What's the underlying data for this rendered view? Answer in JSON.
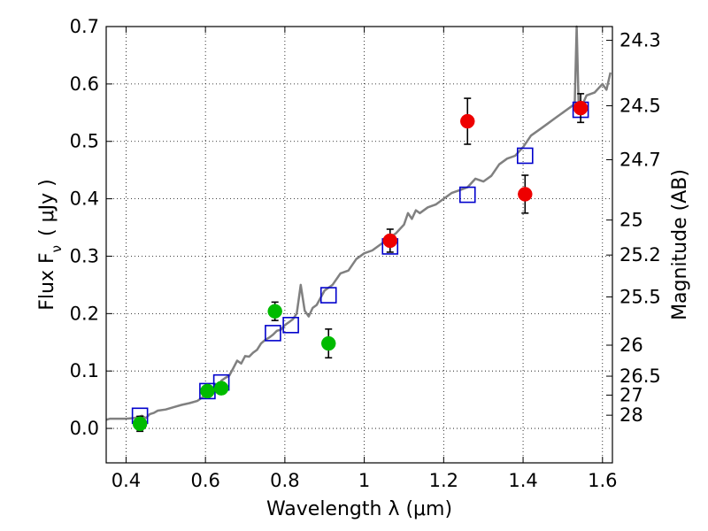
{
  "chart_data": {
    "type": "scatter",
    "xlabel": "Wavelength  λ (μm)",
    "ylabel": "Flux  F",
    "ylabel_sub": "ν",
    "ylabel_unit": "( μJy )",
    "y2label": "Magnitude (AB)",
    "xlim": [
      0.35,
      1.625
    ],
    "ylim": [
      -0.06,
      0.7
    ],
    "grid": true,
    "x_ticks": [
      {
        "value": 0.4,
        "label": "0.4"
      },
      {
        "value": 0.6,
        "label": "0.6"
      },
      {
        "value": 0.8,
        "label": "0.8"
      },
      {
        "value": 1.0,
        "label": "1"
      },
      {
        "value": 1.2,
        "label": "1.2"
      },
      {
        "value": 1.4,
        "label": "1.4"
      },
      {
        "value": 1.6,
        "label": "1.6"
      }
    ],
    "y_ticks": [
      {
        "value": 0.0,
        "label": "0.0"
      },
      {
        "value": 0.1,
        "label": "0.1"
      },
      {
        "value": 0.2,
        "label": "0.2"
      },
      {
        "value": 0.3,
        "label": "0.3"
      },
      {
        "value": 0.4,
        "label": "0.4"
      },
      {
        "value": 0.5,
        "label": "0.5"
      },
      {
        "value": 0.6,
        "label": "0.6"
      },
      {
        "value": 0.7,
        "label": "0.7"
      }
    ],
    "mag_ticks": [
      {
        "value": 0.676,
        "label": "24.3"
      },
      {
        "value": 0.562,
        "label": "24.5"
      },
      {
        "value": 0.468,
        "label": "24.7"
      },
      {
        "value": 0.363,
        "label": "25"
      },
      {
        "value": 0.302,
        "label": "25.2"
      },
      {
        "value": 0.229,
        "label": "25.5"
      },
      {
        "value": 0.145,
        "label": "26"
      },
      {
        "value": 0.091,
        "label": "26.5"
      },
      {
        "value": 0.058,
        "label": "27"
      },
      {
        "value": 0.023,
        "label": "28"
      }
    ],
    "model_spectrum": {
      "color": "#808080",
      "x": [
        0.35,
        0.36,
        0.38,
        0.4,
        0.42,
        0.44,
        0.45,
        0.46,
        0.47,
        0.48,
        0.5,
        0.52,
        0.54,
        0.56,
        0.58,
        0.6,
        0.61,
        0.62,
        0.63,
        0.64,
        0.65,
        0.66,
        0.67,
        0.68,
        0.69,
        0.7,
        0.71,
        0.72,
        0.73,
        0.74,
        0.75,
        0.76,
        0.77,
        0.78,
        0.79,
        0.8,
        0.81,
        0.82,
        0.83,
        0.84,
        0.85,
        0.86,
        0.87,
        0.88,
        0.9,
        0.92,
        0.94,
        0.96,
        0.98,
        1.0,
        1.02,
        1.04,
        1.06,
        1.08,
        1.1,
        1.11,
        1.12,
        1.13,
        1.14,
        1.16,
        1.18,
        1.2,
        1.22,
        1.24,
        1.26,
        1.28,
        1.3,
        1.32,
        1.34,
        1.36,
        1.38,
        1.4,
        1.42,
        1.44,
        1.46,
        1.48,
        1.5,
        1.52,
        1.53,
        1.535,
        1.54,
        1.545,
        1.55,
        1.56,
        1.58,
        1.6,
        1.61,
        1.62
      ],
      "y": [
        0.015,
        0.017,
        0.017,
        0.017,
        0.018,
        0.022,
        0.018,
        0.025,
        0.027,
        0.031,
        0.033,
        0.037,
        0.041,
        0.044,
        0.048,
        0.058,
        0.06,
        0.065,
        0.07,
        0.083,
        0.088,
        0.092,
        0.105,
        0.118,
        0.113,
        0.126,
        0.125,
        0.132,
        0.137,
        0.148,
        0.154,
        0.158,
        0.163,
        0.17,
        0.172,
        0.18,
        0.185,
        0.19,
        0.2,
        0.25,
        0.205,
        0.195,
        0.21,
        0.215,
        0.24,
        0.25,
        0.27,
        0.275,
        0.295,
        0.305,
        0.31,
        0.32,
        0.33,
        0.34,
        0.355,
        0.375,
        0.365,
        0.38,
        0.375,
        0.385,
        0.39,
        0.4,
        0.41,
        0.415,
        0.42,
        0.435,
        0.43,
        0.44,
        0.46,
        0.47,
        0.475,
        0.49,
        0.51,
        0.52,
        0.53,
        0.54,
        0.55,
        0.56,
        0.565,
        0.7,
        0.56,
        0.57,
        0.565,
        0.58,
        0.585,
        0.6,
        0.59,
        0.62
      ]
    },
    "model_points": {
      "color": "#0000cc",
      "x": [
        0.435,
        0.605,
        0.64,
        0.77,
        0.815,
        0.91,
        1.065,
        1.26,
        1.405,
        1.545
      ],
      "y": [
        0.022,
        0.065,
        0.08,
        0.166,
        0.18,
        0.232,
        0.317,
        0.407,
        0.475,
        0.555
      ]
    },
    "series": [
      {
        "color": "#00bb00",
        "x": [
          0.435,
          0.605,
          0.64,
          0.775,
          0.91
        ],
        "y": [
          0.008,
          0.065,
          0.07,
          0.204,
          0.148
        ],
        "err": [
          0.013,
          0.008,
          0.01,
          0.016,
          0.025
        ]
      },
      {
        "color": "#ee0000",
        "x": [
          1.065,
          1.26,
          1.405,
          1.545
        ],
        "y": [
          0.327,
          0.535,
          0.408,
          0.558
        ],
        "err": [
          0.02,
          0.04,
          0.033,
          0.025
        ]
      }
    ]
  }
}
